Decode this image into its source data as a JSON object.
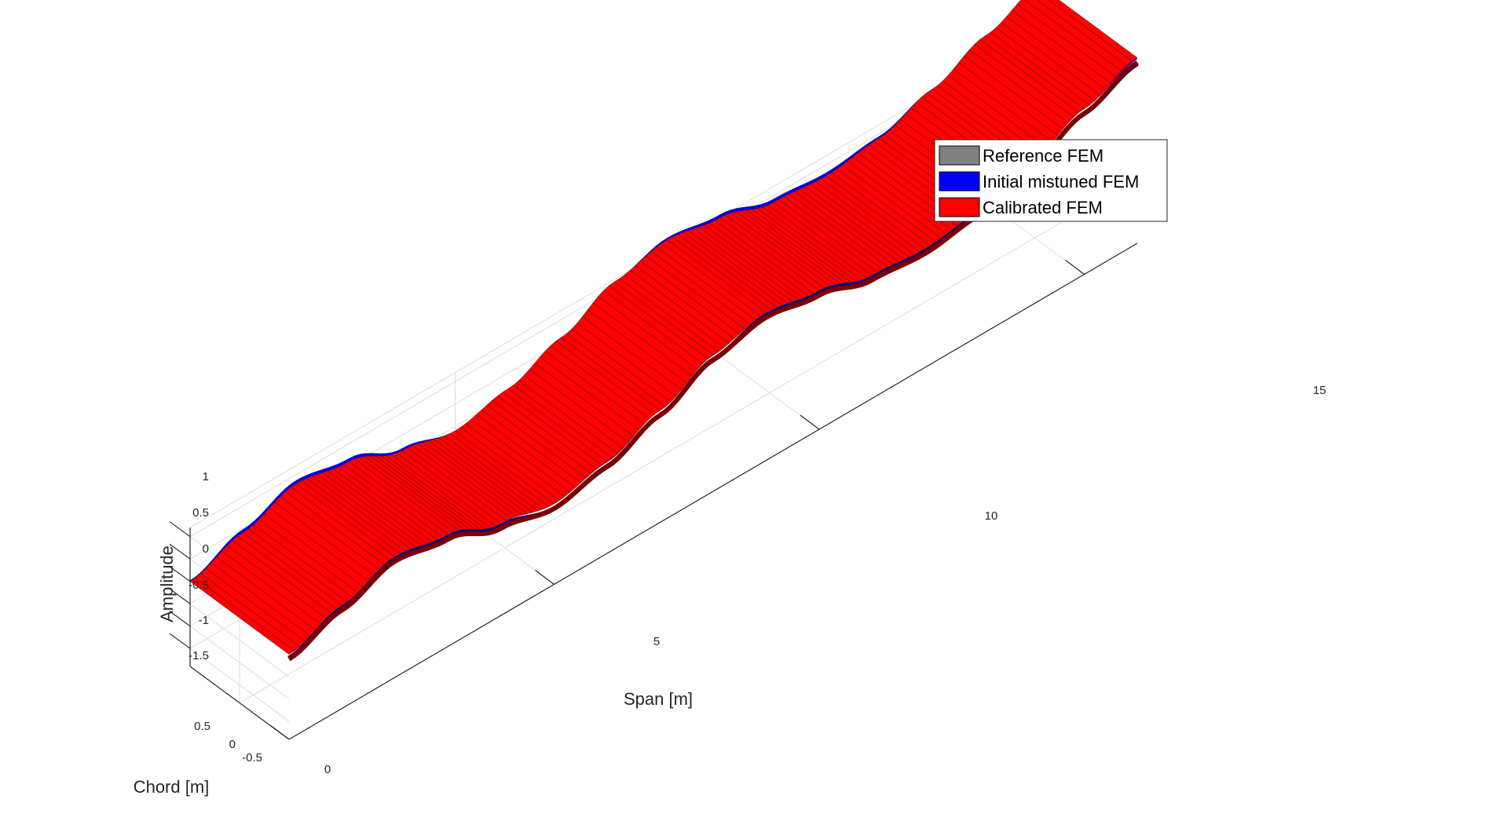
{
  "chart_data": {
    "type": "surface3d",
    "title": "",
    "xlabel": "Span [m]",
    "ylabel": "Chord [m]",
    "zlabel": "Amplitude",
    "xticks": [
      "5",
      "10",
      "15"
    ],
    "yticks": [
      "0.5",
      "0",
      "-0.5"
    ],
    "yticks_front": [
      "0"
    ],
    "zticks": [
      "1",
      "0.5",
      "0",
      "-0.5",
      "-1",
      "-1.5"
    ],
    "xlim": [
      0,
      16
    ],
    "ylim": [
      -0.5,
      0.5
    ],
    "zlim": [
      -1.9,
      1.2
    ],
    "grid": true,
    "legend_position": "top-right",
    "series": [
      {
        "name": "Reference FEM",
        "color": "#808080",
        "span": [
          0,
          1,
          2,
          3,
          4,
          5,
          6,
          7,
          8,
          9,
          10,
          11,
          12,
          13,
          14,
          15,
          16
        ],
        "amplitude": [
          0.0,
          0.4,
          0.8,
          0.6,
          0.15,
          -0.1,
          0.15,
          0.6,
          1.15,
          1.4,
          1.2,
          0.85,
          0.75,
          0.9,
          1.3,
          1.8,
          2.25
        ]
      },
      {
        "name": "Initial mistuned FEM",
        "color": "#0000ff",
        "span": [
          0,
          1,
          2,
          3,
          4,
          5,
          6,
          7,
          8,
          9,
          10,
          11,
          12,
          13,
          14,
          15,
          16
        ],
        "amplitude": [
          0.0,
          0.45,
          0.85,
          0.65,
          0.18,
          -0.12,
          0.12,
          0.58,
          1.12,
          1.42,
          1.25,
          0.9,
          0.8,
          0.92,
          1.28,
          1.78,
          2.2
        ]
      },
      {
        "name": "Calibrated FEM",
        "color": "#ff0000",
        "span": [
          0,
          1,
          2,
          3,
          4,
          5,
          6,
          7,
          8,
          9,
          10,
          11,
          12,
          13,
          14,
          15,
          16
        ],
        "amplitude": [
          0.0,
          0.4,
          0.8,
          0.6,
          0.15,
          -0.1,
          0.15,
          0.6,
          1.15,
          1.4,
          1.2,
          0.85,
          0.75,
          0.9,
          1.3,
          1.8,
          2.25
        ]
      }
    ]
  }
}
